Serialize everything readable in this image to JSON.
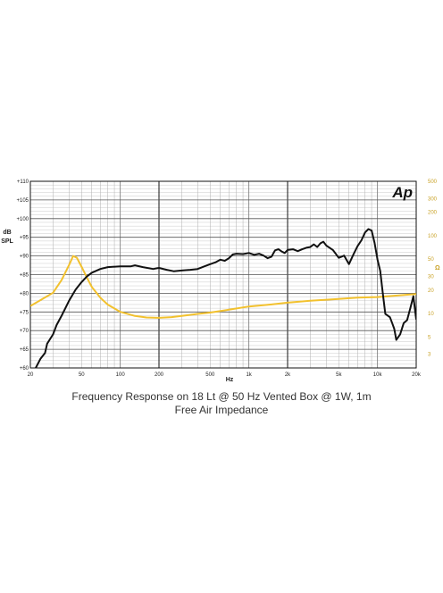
{
  "chart_data": {
    "type": "line",
    "logo": "Ap",
    "xlabel": "Hz",
    "ylabel_left": "dB SPL",
    "ylabel_right": "Ω",
    "x_scale": "log",
    "xlim": [
      20,
      20000
    ],
    "ylim_left": [
      60,
      110
    ],
    "ylim_right": [
      2,
      500
    ],
    "y_scale_right": "log",
    "grid": true,
    "x_ticks": [
      {
        "value": 20,
        "label": "20"
      },
      {
        "value": 50,
        "label": "50"
      },
      {
        "value": 100,
        "label": "100"
      },
      {
        "value": 200,
        "label": "200"
      },
      {
        "value": 500,
        "label": "500"
      },
      {
        "value": 1000,
        "label": "1k"
      },
      {
        "value": 2000,
        "label": "2k"
      },
      {
        "value": 5000,
        "label": "5k"
      },
      {
        "value": 10000,
        "label": "10k"
      },
      {
        "value": 20000,
        "label": "20k"
      }
    ],
    "y_ticks_left": [
      {
        "value": 110,
        "label": "+110"
      },
      {
        "value": 105,
        "label": "+105"
      },
      {
        "value": 100,
        "label": "+100"
      },
      {
        "value": 95,
        "label": "+95"
      },
      {
        "value": 90,
        "label": "+90"
      },
      {
        "value": 85,
        "label": "+85"
      },
      {
        "value": 80,
        "label": "+80"
      },
      {
        "value": 75,
        "label": "+75"
      },
      {
        "value": 70,
        "label": "+70"
      },
      {
        "value": 65,
        "label": "+65"
      },
      {
        "value": 60,
        "label": "+60"
      }
    ],
    "y_ticks_right": [
      {
        "value": 500,
        "label": "500"
      },
      {
        "value": 300,
        "label": "300"
      },
      {
        "value": 200,
        "label": "200"
      },
      {
        "value": 100,
        "label": "100"
      },
      {
        "value": 50,
        "label": "50"
      },
      {
        "value": 30,
        "label": "30"
      },
      {
        "value": 20,
        "label": "20"
      },
      {
        "value": 10,
        "label": "10"
      },
      {
        "value": 5,
        "label": "5"
      },
      {
        "value": 3,
        "label": "3"
      }
    ],
    "series": [
      {
        "axis": "left",
        "color": "#111111",
        "points": [
          [
            22,
            60
          ],
          [
            24,
            62.5
          ],
          [
            26,
            64
          ],
          [
            27,
            66.5
          ],
          [
            30,
            69
          ],
          [
            32,
            71.5
          ],
          [
            35,
            74
          ],
          [
            40,
            78
          ],
          [
            45,
            81
          ],
          [
            50,
            83
          ],
          [
            55,
            84.5
          ],
          [
            60,
            85.5
          ],
          [
            70,
            86.5
          ],
          [
            80,
            87
          ],
          [
            100,
            87.2
          ],
          [
            120,
            87.2
          ],
          [
            130,
            87.5
          ],
          [
            150,
            87
          ],
          [
            180,
            86.5
          ],
          [
            200,
            86.8
          ],
          [
            230,
            86.3
          ],
          [
            260,
            85.9
          ],
          [
            300,
            86.1
          ],
          [
            350,
            86.3
          ],
          [
            400,
            86.5
          ],
          [
            450,
            87.2
          ],
          [
            500,
            87.8
          ],
          [
            550,
            88.3
          ],
          [
            600,
            89
          ],
          [
            650,
            88.7
          ],
          [
            700,
            89.4
          ],
          [
            750,
            90.4
          ],
          [
            800,
            90.6
          ],
          [
            900,
            90.5
          ],
          [
            1000,
            90.8
          ],
          [
            1100,
            90.3
          ],
          [
            1200,
            90.6
          ],
          [
            1300,
            90.1
          ],
          [
            1400,
            89.4
          ],
          [
            1500,
            89.8
          ],
          [
            1600,
            91.5
          ],
          [
            1700,
            91.8
          ],
          [
            1800,
            91.2
          ],
          [
            1900,
            90.8
          ],
          [
            2000,
            91.6
          ],
          [
            2200,
            91.8
          ],
          [
            2400,
            91.3
          ],
          [
            2600,
            91.8
          ],
          [
            2800,
            92.2
          ],
          [
            3000,
            92.4
          ],
          [
            3200,
            93.1
          ],
          [
            3400,
            92.4
          ],
          [
            3600,
            93.4
          ],
          [
            3800,
            93.8
          ],
          [
            4000,
            92.8
          ],
          [
            4500,
            91.6
          ],
          [
            5000,
            89.5
          ],
          [
            5500,
            90.1
          ],
          [
            6000,
            87.8
          ],
          [
            6500,
            90.4
          ],
          [
            7000,
            92.6
          ],
          [
            7500,
            94.2
          ],
          [
            8000,
            96.3
          ],
          [
            8500,
            97.2
          ],
          [
            9000,
            96.8
          ],
          [
            9500,
            93.5
          ],
          [
            10000,
            89
          ],
          [
            10500,
            86
          ],
          [
            11000,
            80
          ],
          [
            11500,
            74.5
          ],
          [
            12500,
            73.6
          ],
          [
            13000,
            72
          ],
          [
            13500,
            70.5
          ],
          [
            14000,
            67.5
          ],
          [
            15000,
            69
          ],
          [
            16000,
            72
          ],
          [
            17000,
            72.8
          ],
          [
            18000,
            76
          ],
          [
            19000,
            79.2
          ],
          [
            20000,
            73
          ]
        ]
      },
      {
        "axis": "right",
        "color": "#f2c12e",
        "points": [
          [
            20,
            12.5
          ],
          [
            25,
            15.5
          ],
          [
            30,
            18.5
          ],
          [
            35,
            27
          ],
          [
            40,
            42
          ],
          [
            43,
            55
          ],
          [
            46,
            52
          ],
          [
            50,
            40
          ],
          [
            55,
            29
          ],
          [
            60,
            22
          ],
          [
            70,
            16
          ],
          [
            80,
            13
          ],
          [
            100,
            10.5
          ],
          [
            130,
            9.3
          ],
          [
            160,
            8.9
          ],
          [
            200,
            8.8
          ],
          [
            250,
            9
          ],
          [
            300,
            9.3
          ],
          [
            400,
            9.9
          ],
          [
            500,
            10.3
          ],
          [
            700,
            11.2
          ],
          [
            1000,
            12.3
          ],
          [
            1500,
            13.1
          ],
          [
            2000,
            13.8
          ],
          [
            3000,
            14.6
          ],
          [
            5000,
            15.4
          ],
          [
            7000,
            16
          ],
          [
            10000,
            16.3
          ],
          [
            15000,
            17.2
          ],
          [
            20000,
            17.8
          ]
        ]
      }
    ]
  },
  "caption": {
    "line1": "Frequency Response on 18 Lt @ 50 Hz Vented Box @ 1W, 1m",
    "line2": "Free Air Impedance"
  }
}
